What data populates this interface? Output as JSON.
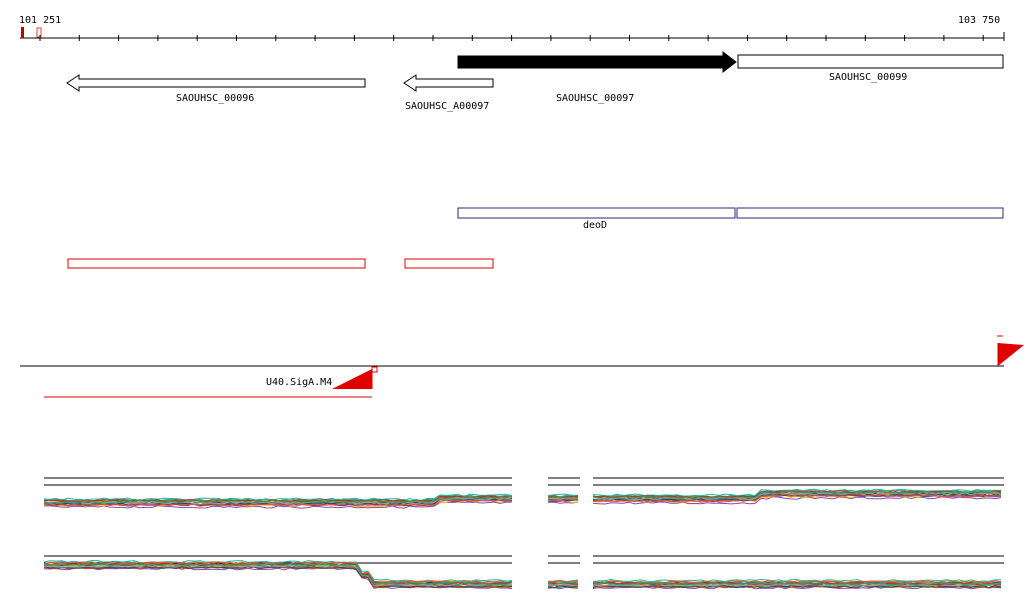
{
  "ruler": {
    "start_label": "101 251",
    "end_label": "103 750",
    "start_bp": 101251,
    "end_bp": 103750
  },
  "genes": {
    "g96": {
      "label": "SAOUHSC_00096",
      "strand": "-",
      "start_bp": 101297,
      "end_bp": 102046
    },
    "ga97": {
      "label": "SAOUHSC_A00097",
      "strand": "-",
      "start_bp": 102141,
      "end_bp": 102366
    },
    "g97": {
      "label": "SAOUHSC_00097",
      "strand": "+",
      "start_bp": 102256,
      "end_bp": 102951,
      "selected": true
    },
    "g99": {
      "label": "SAOUHSC_00099",
      "strand": "+",
      "start_bp": 102954,
      "end_bp": 103700
    }
  },
  "operons": {
    "deoD": {
      "label": "deoD",
      "start_bp": 102256,
      "end_bp": 102951
    },
    "next": {
      "start_bp": 102954,
      "end_bp": 103700
    }
  },
  "red_features": [
    {
      "start_bp": 101297,
      "end_bp": 102046
    },
    {
      "start_bp": 102141,
      "end_bp": 102366
    }
  ],
  "promoter": {
    "label": "U40.SigA.M4",
    "start_bp": 101310,
    "end_bp": 102132
  },
  "colors": {
    "feature_red": "#e00000",
    "operon_blue": "#2a2a7a",
    "gene_black": "#000000"
  },
  "expression_tracks": [
    {
      "name": "forward-expression",
      "level": 0.45
    },
    {
      "name": "reverse-expression",
      "level": 0.55
    }
  ]
}
